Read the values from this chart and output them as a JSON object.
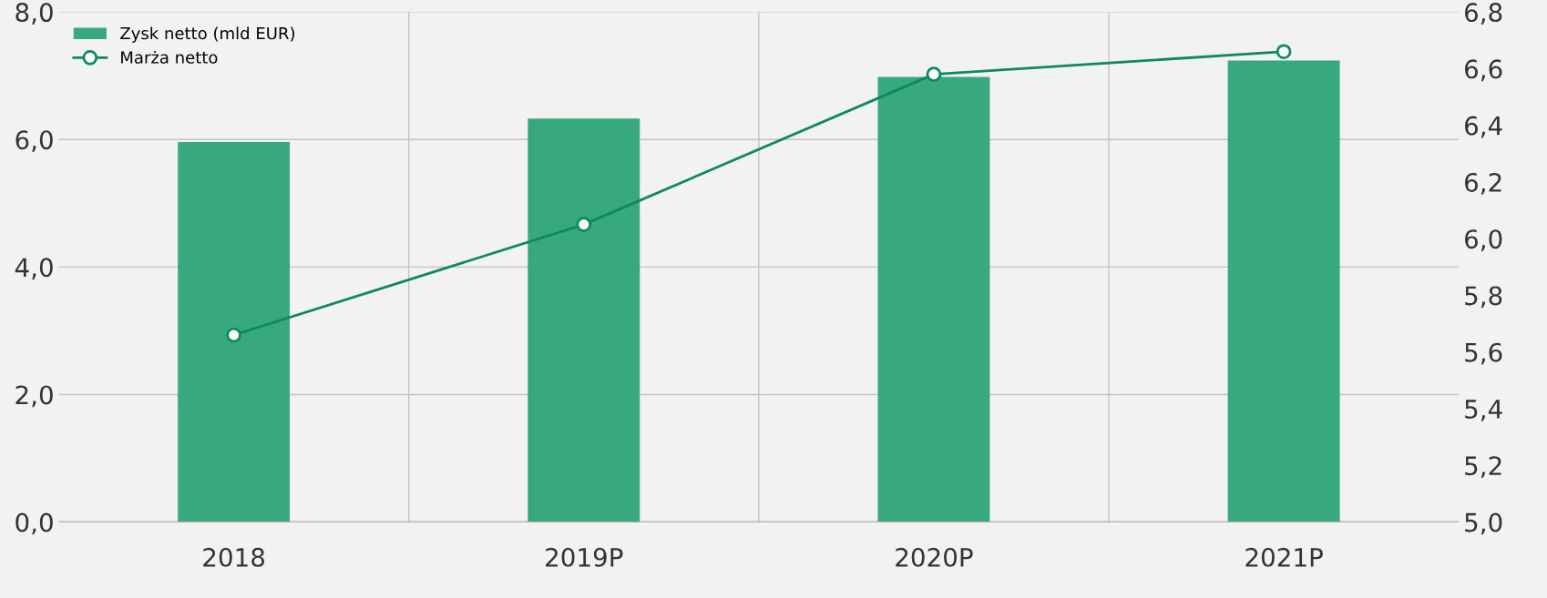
{
  "chart_data": {
    "type": "bar",
    "categories": [
      "2018",
      "2019P",
      "2020P",
      "2021P"
    ],
    "series": [
      {
        "name": "Zysk netto (mld EUR)",
        "color": "#38a97c",
        "values": [
          5.96,
          6.33,
          6.98,
          7.24
        ]
      },
      {
        "name": "Marża netto",
        "type": "line",
        "axis": "y2",
        "color": "#0e8a5a",
        "values": [
          5.66,
          6.05,
          6.58,
          6.66
        ]
      }
    ],
    "ylim": [
      0,
      8
    ],
    "yticks": [
      {
        "value": 0,
        "label": "0,0"
      },
      {
        "value": 2,
        "label": "2,0"
      },
      {
        "value": 4,
        "label": "4,0"
      },
      {
        "value": 6,
        "label": "6,0"
      },
      {
        "value": 8,
        "label": "8,0"
      }
    ],
    "y2lim": [
      5,
      6.8
    ],
    "y2ticks": [
      {
        "value": 5.0,
        "label": "5,0"
      },
      {
        "value": 5.2,
        "label": "5,2"
      },
      {
        "value": 5.4,
        "label": "5,4"
      },
      {
        "value": 5.6,
        "label": "5,6"
      },
      {
        "value": 5.8,
        "label": "5,8"
      },
      {
        "value": 6.0,
        "label": "6,0"
      },
      {
        "value": 6.2,
        "label": "6,2"
      },
      {
        "value": 6.4,
        "label": "6,4"
      },
      {
        "value": 6.6,
        "label": "6,6"
      },
      {
        "value": 6.8,
        "label": "6,8"
      }
    ],
    "grid": true,
    "legend": "top left",
    "marker": "circle",
    "line_style": "solid"
  }
}
